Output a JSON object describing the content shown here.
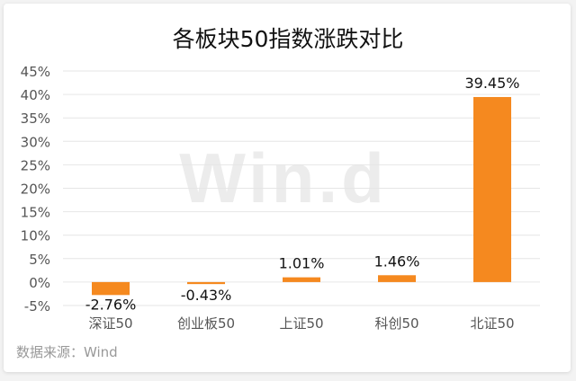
{
  "chart_data": {
    "type": "bar",
    "title": "各板块50指数涨跌对比",
    "categories": [
      "深证50",
      "创业板50",
      "上证50",
      "科创50",
      "北证50"
    ],
    "values": [
      -2.76,
      -0.43,
      1.01,
      1.46,
      39.45
    ],
    "data_labels": [
      "-2.76%",
      "-0.43%",
      "1.01%",
      "1.46%",
      "39.45%"
    ],
    "ylim": [
      -5,
      45
    ],
    "yticks": [
      "-5%",
      "0%",
      "5%",
      "10%",
      "15%",
      "20%",
      "25%",
      "30%",
      "35%",
      "40%",
      "45%"
    ],
    "grid": true,
    "legend": "none",
    "bar_color": "#f5891f",
    "watermark": "Win.d",
    "source": "数据来源：Wind"
  }
}
